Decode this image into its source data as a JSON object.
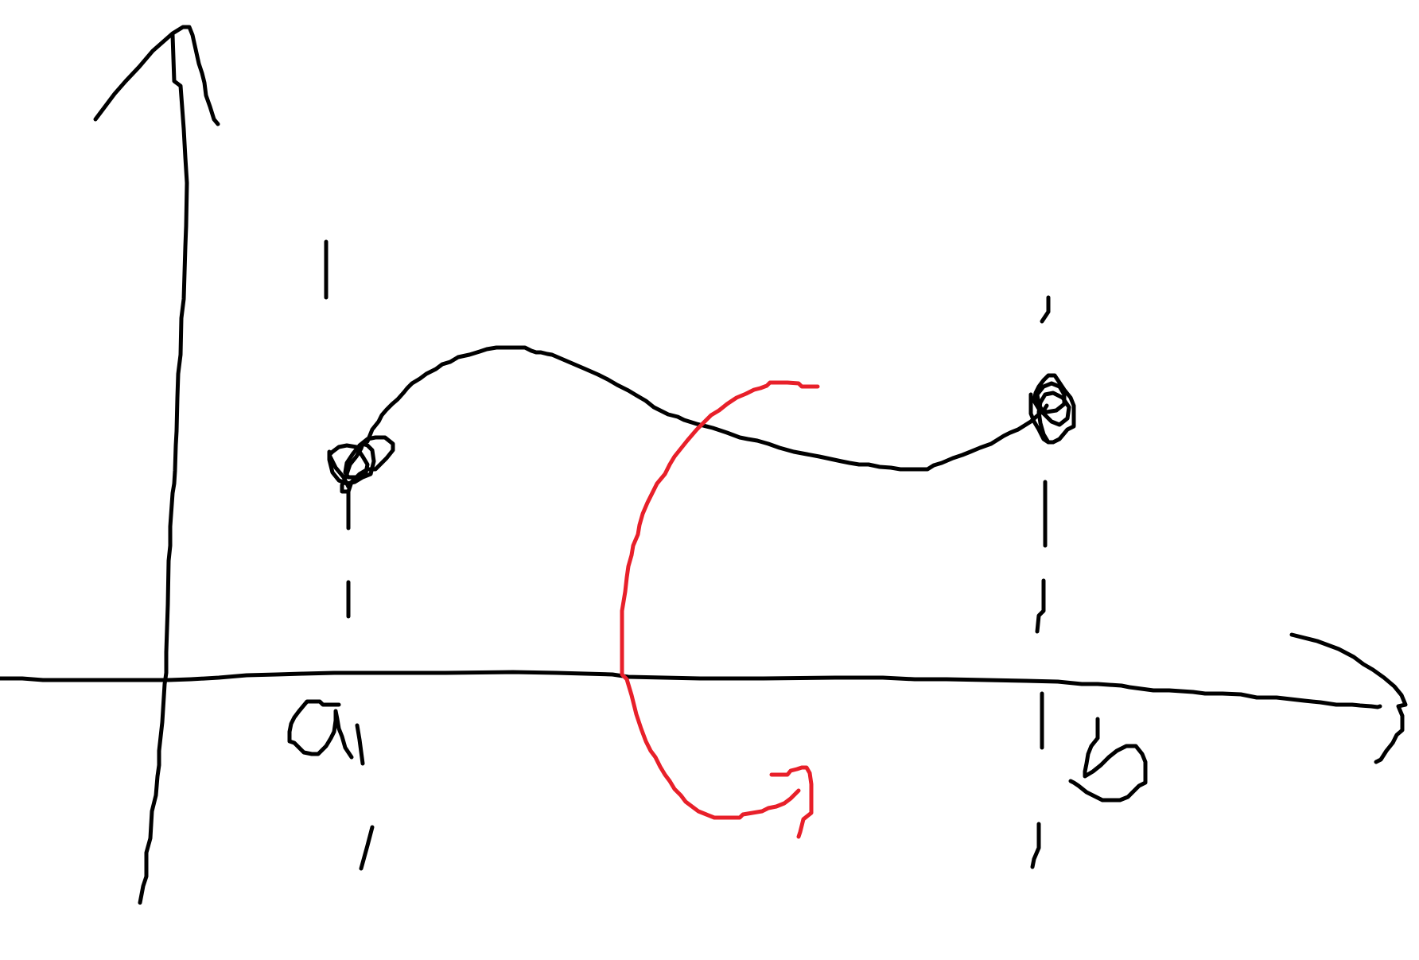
{
  "colors": {
    "ink": "#000000",
    "accent": "#e8202a",
    "background": "#ffffff"
  },
  "labels": {
    "left_bound": "a",
    "right_bound": "b"
  },
  "marks": {
    "left_endpoint": "open-circle-endpoint",
    "right_endpoint": "open-circle-endpoint",
    "red_stroke": "curved-arrow-icon"
  }
}
